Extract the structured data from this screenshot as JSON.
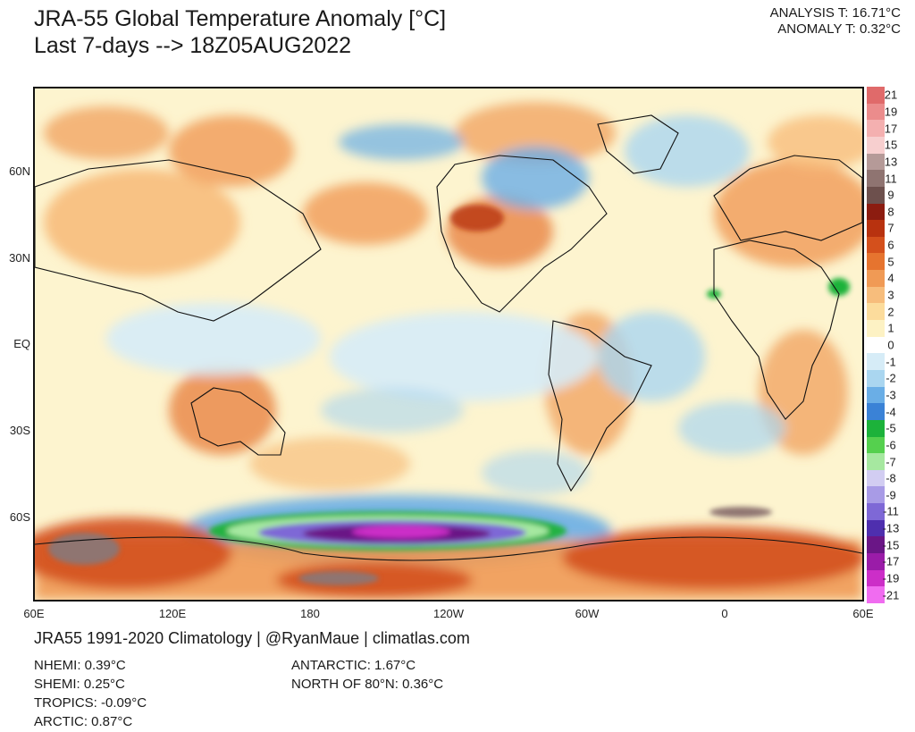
{
  "title": {
    "line1": "JRA-55 Global Temperature Anomaly [°C]",
    "line2": "Last 7-days --> 18Z05AUG2022"
  },
  "summary": {
    "analysis": "ANALYSIS T: 16.71°C",
    "anomaly": "ANOMALY T: 0.32°C"
  },
  "map": {
    "lat_labels": [
      "60N",
      "30N",
      "EQ",
      "30S",
      "60S"
    ],
    "lon_labels": [
      "60E",
      "120E",
      "180",
      "120W",
      "60W",
      "0",
      "60E"
    ]
  },
  "colorbar": {
    "levels": [
      "21",
      "19",
      "17",
      "15",
      "13",
      "11",
      "9",
      "8",
      "7",
      "6",
      "5",
      "4",
      "3",
      "2",
      "1",
      "0",
      "-1",
      "-2",
      "-3",
      "-4",
      "-5",
      "-6",
      "-7",
      "-8",
      "-9",
      "-11",
      "-13",
      "-15",
      "-17",
      "-19",
      "-21"
    ],
    "colors": [
      "#e06a6a",
      "#eb8c8c",
      "#f4b0b0",
      "#f7cfcf",
      "#b59a98",
      "#8f7471",
      "#6d504d",
      "#8c1c10",
      "#b8320f",
      "#d4501c",
      "#e6742f",
      "#f09a55",
      "#f7bd7c",
      "#fcdc9c",
      "#fdf2c4",
      "#ffffff",
      "#d6ecf7",
      "#aad6f0",
      "#6aaee6",
      "#3a82d6",
      "#1cb23a",
      "#55d04e",
      "#a6e8a0",
      "#d2cdf2",
      "#a89be6",
      "#7e68d6",
      "#4e2fae",
      "#6a1686",
      "#9a1ca8",
      "#cc2ec8",
      "#f06cf0"
    ]
  },
  "footer": {
    "credit": "JRA55 1991-2020 Climatology | @RyanMaue | climatlas.com"
  },
  "stats_left": [
    "NHEMI: 0.39°C",
    "SHEMI: 0.25°C",
    "TROPICS: -0.09°C",
    "ARCTIC: 0.87°C"
  ],
  "stats_right": [
    "ANTARCTIC: 1.67°C",
    "NORTH OF 80°N: 0.36°C"
  ]
}
